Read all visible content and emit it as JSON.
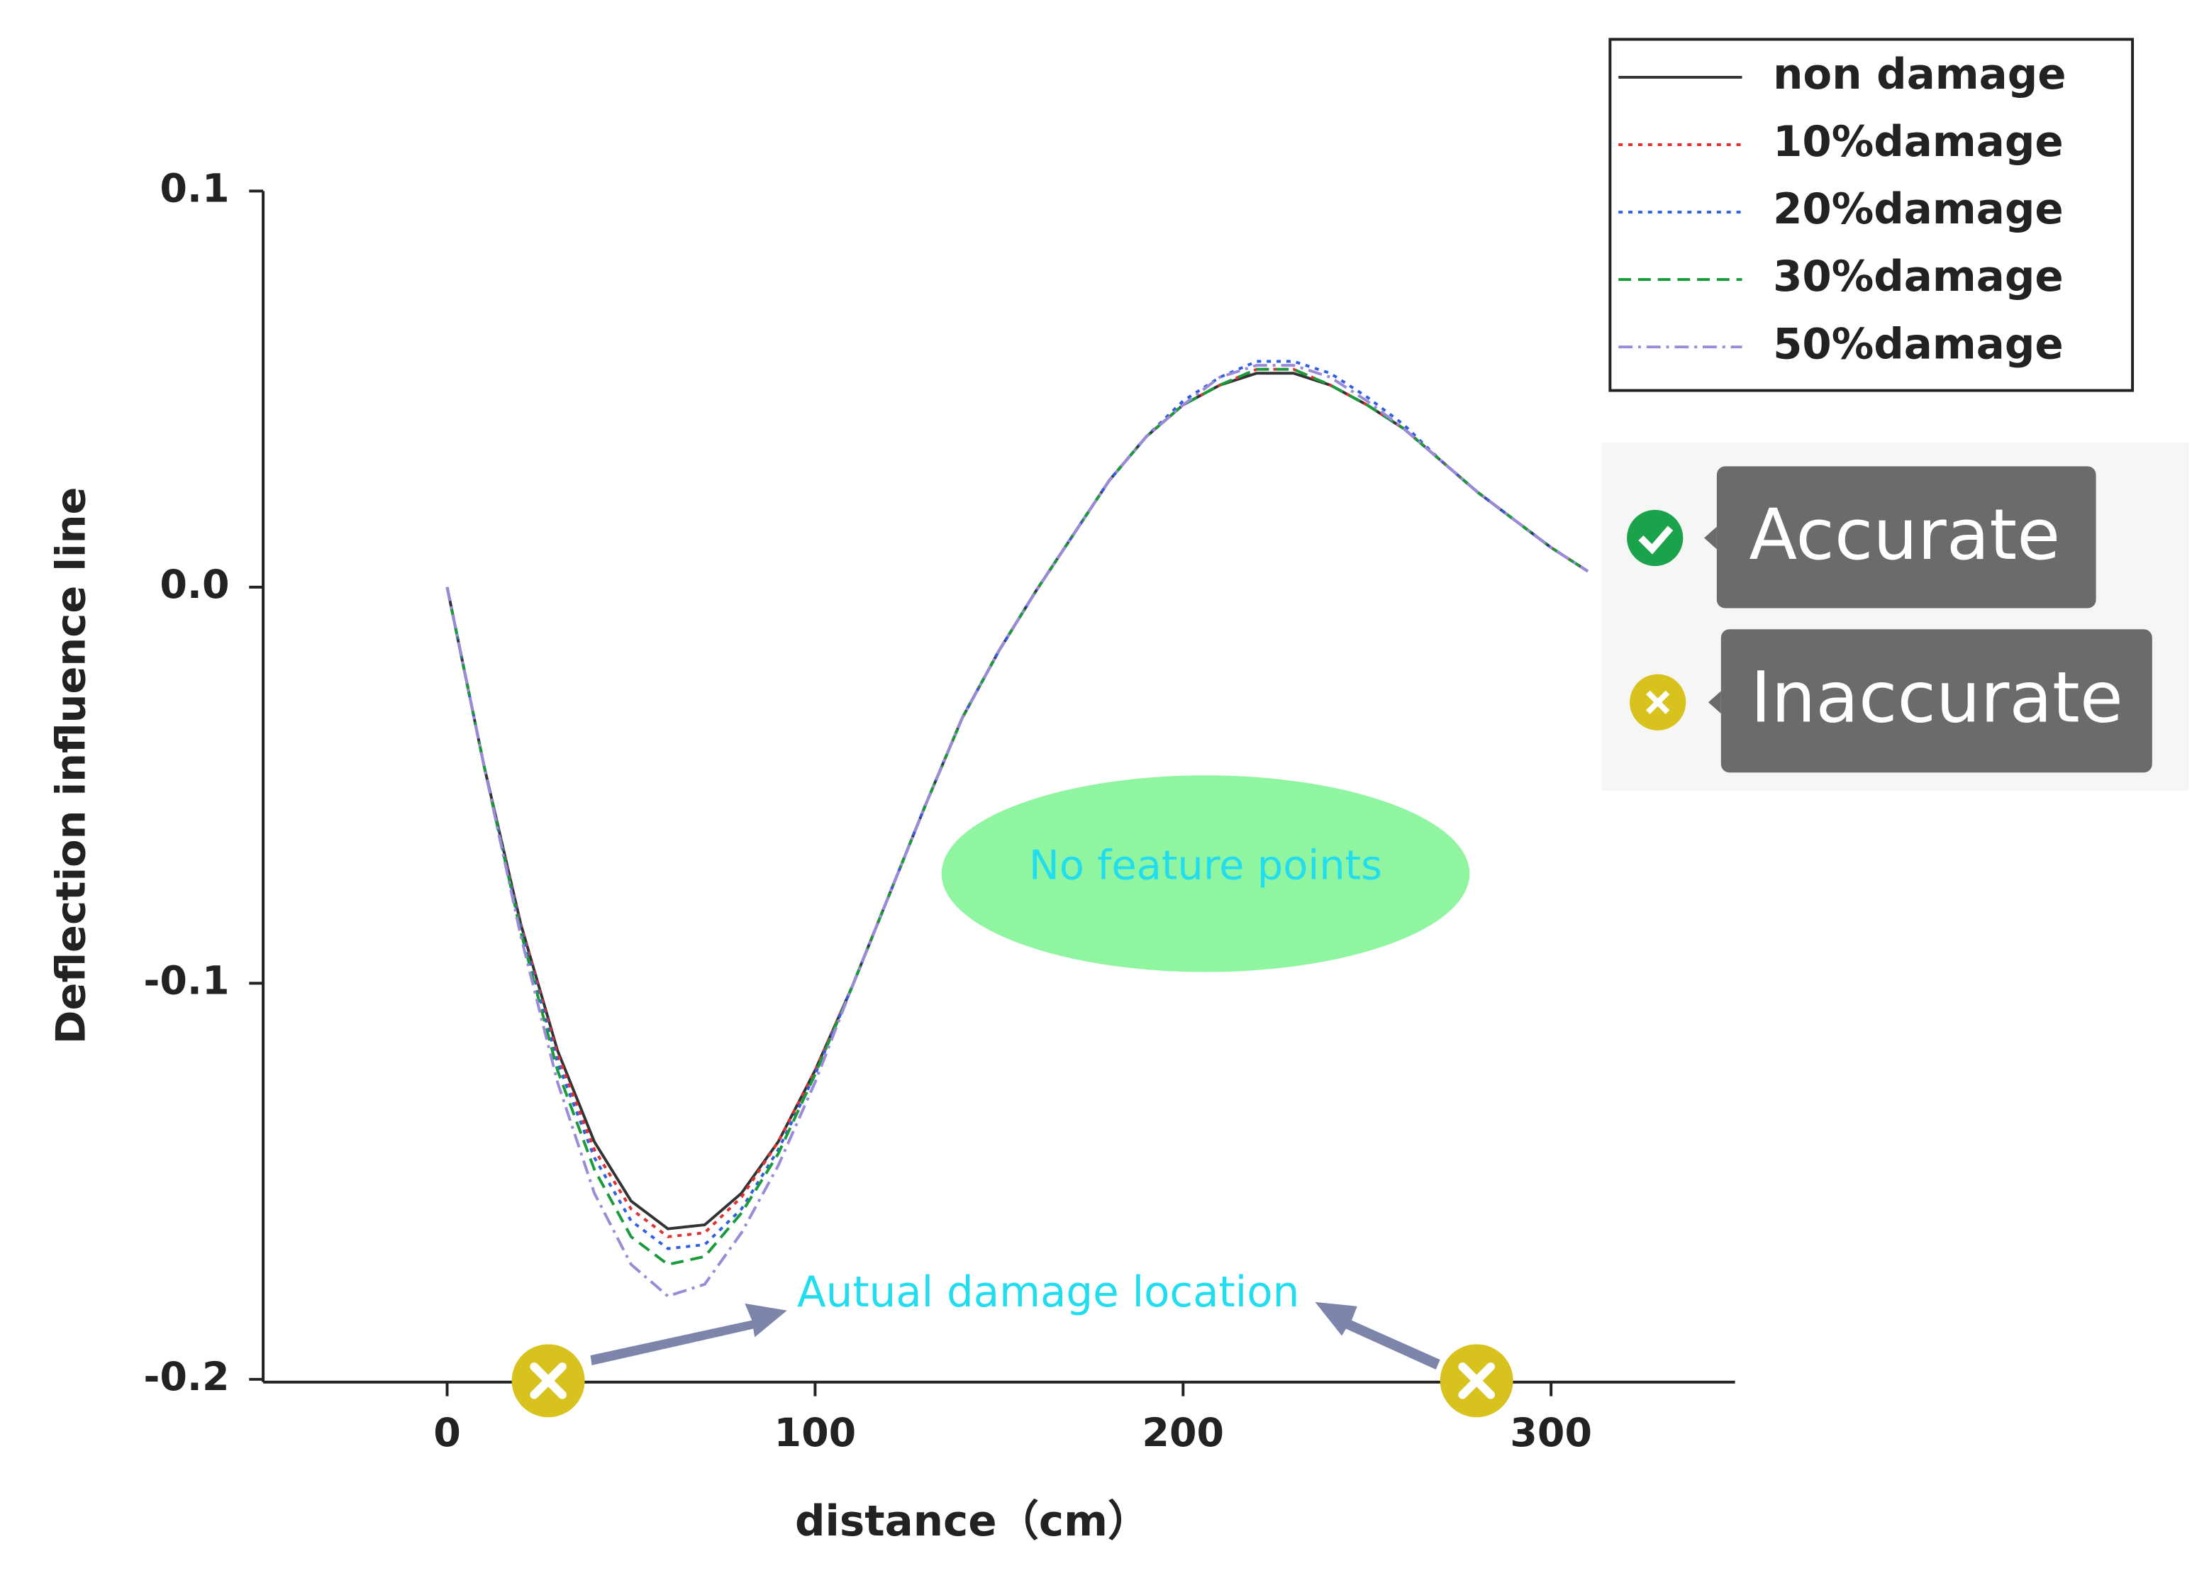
{
  "chart_data": {
    "type": "line",
    "x_label": "distance（cm）",
    "y_label": "Deflection influence line",
    "x": [
      0,
      10,
      20,
      30,
      40,
      50,
      60,
      70,
      80,
      90,
      100,
      110,
      120,
      130,
      140,
      150,
      160,
      170,
      180,
      190,
      200,
      210,
      220,
      230,
      240,
      250,
      260,
      270,
      280,
      290,
      300,
      310
    ],
    "series": [
      {
        "name": "non damage",
        "color": "#333333",
        "dash": "solid",
        "values": [
          0,
          -0.045,
          -0.085,
          -0.117,
          -0.14,
          -0.155,
          -0.162,
          -0.161,
          -0.153,
          -0.14,
          -0.122,
          -0.101,
          -0.078,
          -0.055,
          -0.033,
          -0.016,
          -0.001,
          0.013,
          0.027,
          0.038,
          0.046,
          0.051,
          0.054,
          0.054,
          0.051,
          0.046,
          0.04,
          0.032,
          0.024,
          0.017,
          0.01,
          0.004
        ]
      },
      {
        "name": "10%damage",
        "color": "#e03030",
        "dash": "dot",
        "values": [
          0,
          -0.045,
          -0.085,
          -0.118,
          -0.142,
          -0.157,
          -0.164,
          -0.163,
          -0.154,
          -0.14,
          -0.122,
          -0.101,
          -0.078,
          -0.055,
          -0.033,
          -0.016,
          -0.001,
          0.013,
          0.027,
          0.038,
          0.046,
          0.051,
          0.055,
          0.055,
          0.051,
          0.046,
          0.04,
          0.032,
          0.024,
          0.017,
          0.01,
          0.004
        ]
      },
      {
        "name": "20%damage",
        "color": "#3060e0",
        "dash": "dot",
        "values": [
          0,
          -0.045,
          -0.086,
          -0.12,
          -0.144,
          -0.16,
          -0.167,
          -0.166,
          -0.157,
          -0.142,
          -0.123,
          -0.101,
          -0.078,
          -0.055,
          -0.033,
          -0.016,
          -0.001,
          0.013,
          0.027,
          0.038,
          0.047,
          0.053,
          0.057,
          0.057,
          0.054,
          0.048,
          0.041,
          0.032,
          0.024,
          0.017,
          0.01,
          0.004
        ]
      },
      {
        "name": "30%damage",
        "color": "#1a9a3a",
        "dash": "dash",
        "values": [
          0,
          -0.045,
          -0.087,
          -0.122,
          -0.147,
          -0.164,
          -0.171,
          -0.169,
          -0.158,
          -0.143,
          -0.123,
          -0.101,
          -0.078,
          -0.055,
          -0.033,
          -0.016,
          -0.001,
          0.013,
          0.027,
          0.038,
          0.046,
          0.051,
          0.055,
          0.055,
          0.051,
          0.046,
          0.04,
          0.032,
          0.024,
          0.017,
          0.01,
          0.004
        ]
      },
      {
        "name": "50%damage",
        "color": "#9a8ad8",
        "dash": "dashdot",
        "values": [
          0,
          -0.045,
          -0.088,
          -0.125,
          -0.153,
          -0.171,
          -0.179,
          -0.176,
          -0.163,
          -0.146,
          -0.125,
          -0.101,
          -0.078,
          -0.055,
          -0.033,
          -0.016,
          -0.001,
          0.013,
          0.027,
          0.038,
          0.046,
          0.053,
          0.056,
          0.056,
          0.053,
          0.047,
          0.04,
          0.032,
          0.024,
          0.017,
          0.01,
          0.004
        ]
      }
    ],
    "xlim": [
      -50,
      350
    ],
    "ylim": [
      -0.2,
      0.1
    ],
    "xticks": [
      0,
      100,
      200,
      300
    ],
    "yticks": [
      -0.2,
      -0.1,
      {
        "value": 0,
        "label": "0.0"
      },
      0.1
    ],
    "annotations": {
      "no_feature": "No feature points",
      "damage_location": "Autual damage location",
      "accurate": "Accurate",
      "inaccurate": "Inaccurate"
    }
  }
}
